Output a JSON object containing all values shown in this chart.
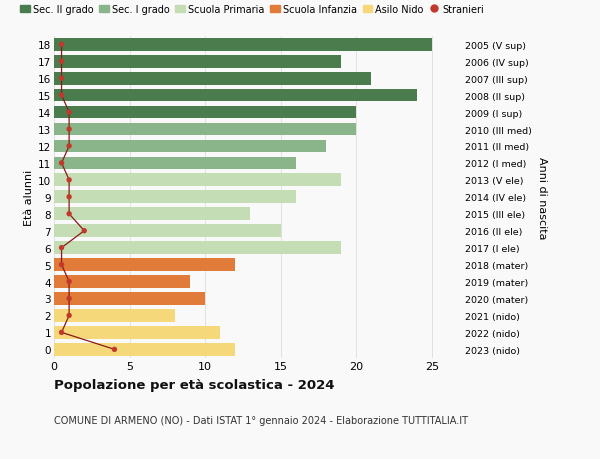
{
  "ages": [
    18,
    17,
    16,
    15,
    14,
    13,
    12,
    11,
    10,
    9,
    8,
    7,
    6,
    5,
    4,
    3,
    2,
    1,
    0
  ],
  "right_labels": [
    "2005 (V sup)",
    "2006 (IV sup)",
    "2007 (III sup)",
    "2008 (II sup)",
    "2009 (I sup)",
    "2010 (III med)",
    "2011 (II med)",
    "2012 (I med)",
    "2013 (V ele)",
    "2014 (IV ele)",
    "2015 (III ele)",
    "2016 (II ele)",
    "2017 (I ele)",
    "2018 (mater)",
    "2019 (mater)",
    "2020 (mater)",
    "2021 (nido)",
    "2022 (nido)",
    "2023 (nido)"
  ],
  "bar_values": [
    25,
    19,
    21,
    24,
    20,
    20,
    18,
    16,
    19,
    16,
    13,
    15,
    19,
    12,
    9,
    10,
    8,
    11,
    12
  ],
  "bar_colors": [
    "#4a7c4e",
    "#4a7c4e",
    "#4a7c4e",
    "#4a7c4e",
    "#4a7c4e",
    "#8ab58a",
    "#8ab58a",
    "#8ab58a",
    "#c5ddb5",
    "#c5ddb5",
    "#c5ddb5",
    "#c5ddb5",
    "#c5ddb5",
    "#e07b3a",
    "#e07b3a",
    "#e07b3a",
    "#f5d87a",
    "#f5d87a",
    "#f5d87a"
  ],
  "stranieri_x": [
    0.5,
    0.5,
    0.5,
    0.5,
    1,
    1,
    1,
    0.5,
    1,
    1,
    1,
    2,
    0.5,
    0.5,
    1,
    1,
    1,
    0.5,
    4
  ],
  "legend_labels": [
    "Sec. II grado",
    "Sec. I grado",
    "Scuola Primaria",
    "Scuola Infanzia",
    "Asilo Nido",
    "Stranieri"
  ],
  "legend_colors": [
    "#4a7c4e",
    "#8ab58a",
    "#c5ddb5",
    "#e07b3a",
    "#f5d87a",
    "#c0392b"
  ],
  "title_bold": "Popolazione per età scolastica - 2024",
  "subtitle": "COMUNE DI ARMENO (NO) - Dati ISTAT 1° gennaio 2024 - Elaborazione TUTTITALIA.IT",
  "ylabel": "Età alunni",
  "ylabel2": "Anni di nascita",
  "xlim": [
    0,
    27
  ],
  "background_color": "#f9f9f9",
  "grid_color": "#dddddd",
  "stranieri_line_color": "#8b1a1a",
  "stranieri_dot_color": "#c0392b"
}
